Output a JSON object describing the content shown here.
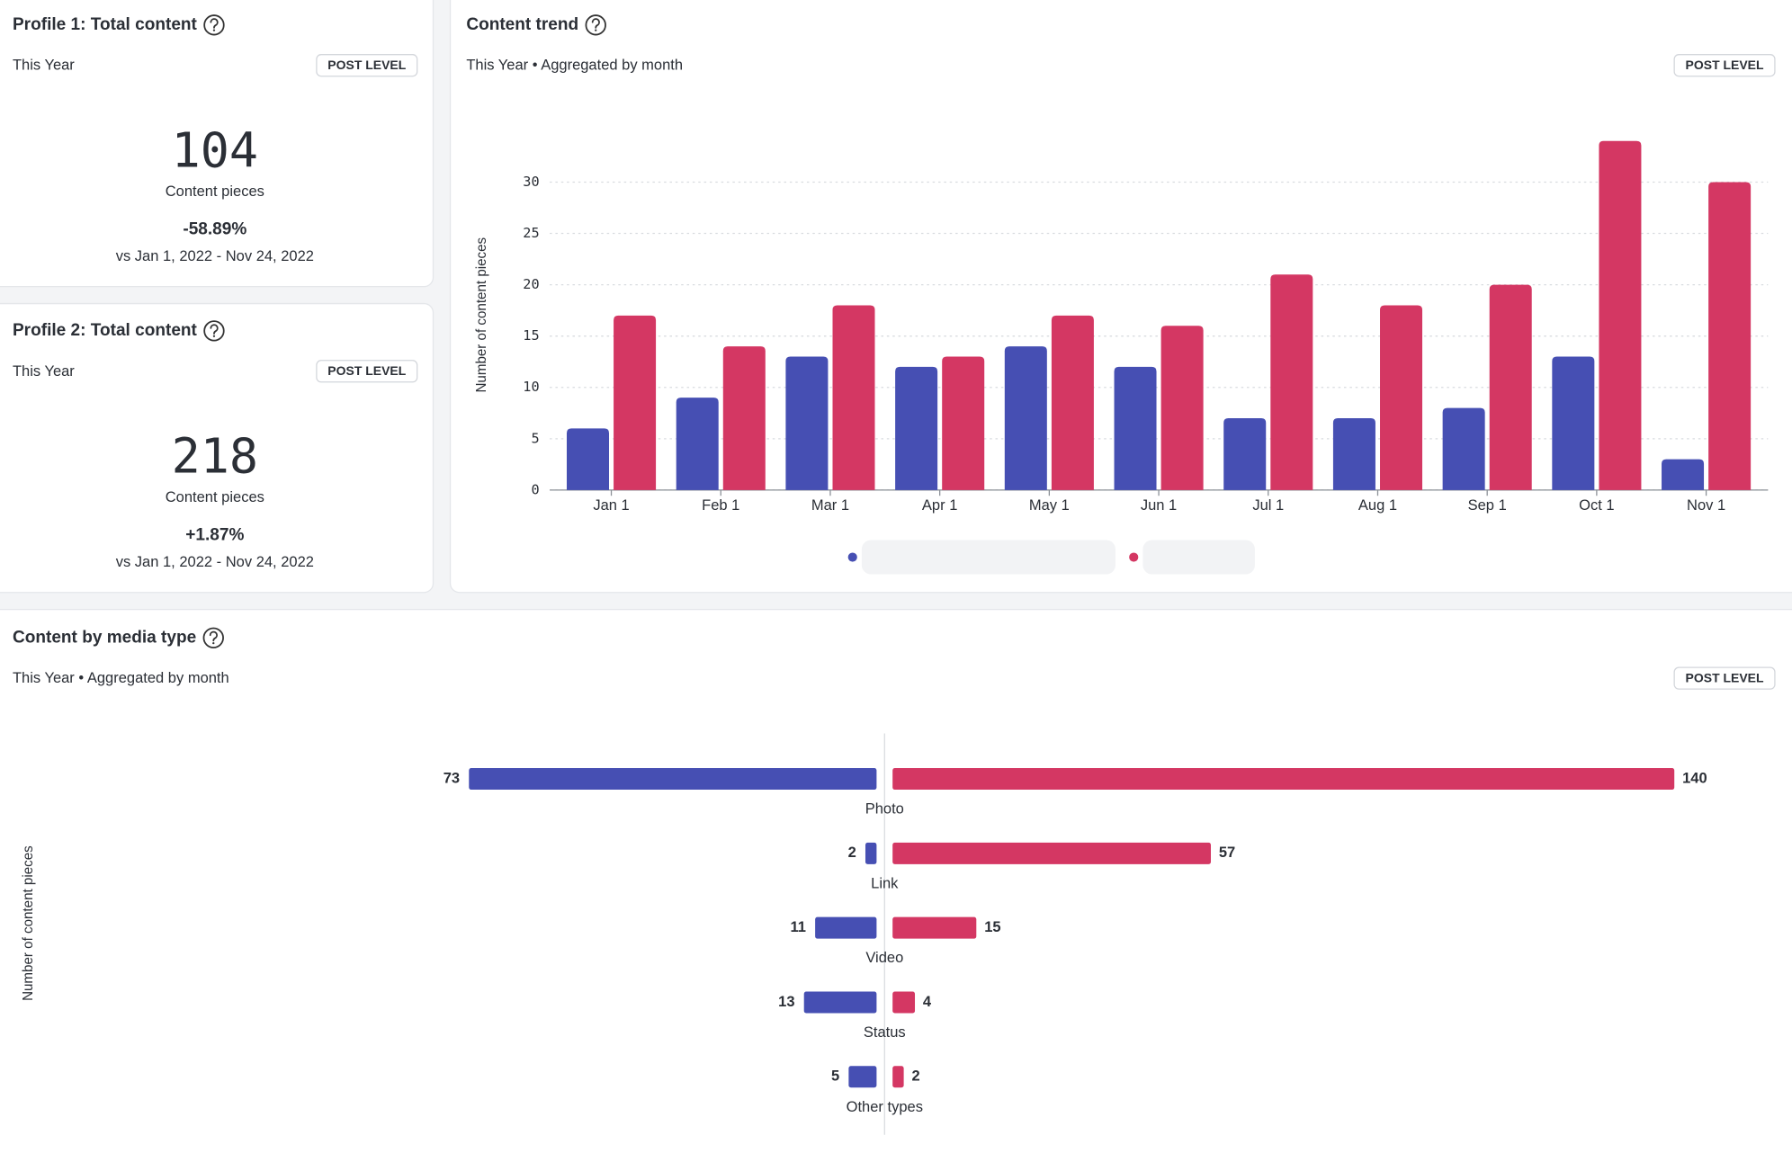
{
  "kpis": [
    {
      "title": "Profile 1: Total content",
      "period": "This Year",
      "badge": "POST LEVEL",
      "value": 104,
      "caption": "Content pieces",
      "change": "-58.89%",
      "comparison": "vs Jan 1, 2022 - Nov 24, 2022"
    },
    {
      "title": "Profile 2: Total content",
      "period": "This Year",
      "badge": "POST LEVEL",
      "value": 218,
      "caption": "Content pieces",
      "change": "+1.87%",
      "comparison": "vs Jan 1, 2022 - Nov 24, 2022"
    }
  ],
  "chart_data": [
    {
      "type": "bar",
      "title": "Content trend",
      "subtitle": "This Year • Aggregated by month",
      "badge": "POST LEVEL",
      "y_label": "Number of content pieces",
      "categories": [
        "Jan 1",
        "Feb 1",
        "Mar 1",
        "Apr 1",
        "May 1",
        "Jun 1",
        "Jul 1",
        "Aug 1",
        "Sep 1",
        "Oct 1",
        "Nov 1"
      ],
      "series": [
        {
          "color": "#464fb3",
          "values": [
            6,
            9,
            13,
            12,
            14,
            12,
            7,
            7,
            8,
            13,
            3
          ]
        },
        {
          "color": "#d43763",
          "values": [
            17,
            14,
            18,
            13,
            17,
            16,
            21,
            18,
            20,
            34,
            30
          ]
        }
      ],
      "ylim": [
        0,
        35
      ],
      "yticks": [
        0,
        5,
        10,
        15,
        20,
        25,
        30
      ],
      "grid": true
    },
    {
      "type": "diverging-bar",
      "title": "Content by media type",
      "subtitle": "This Year • Aggregated by month",
      "badge": "POST LEVEL",
      "y_label": "Number of content pieces",
      "categories": [
        "Photo",
        "Link",
        "Video",
        "Status",
        "Other types"
      ],
      "series": [
        {
          "color": "#464fb3",
          "values": [
            73,
            2,
            11,
            13,
            5
          ]
        },
        {
          "color": "#d43763",
          "values": [
            140,
            57,
            15,
            4,
            2
          ]
        }
      ]
    }
  ]
}
